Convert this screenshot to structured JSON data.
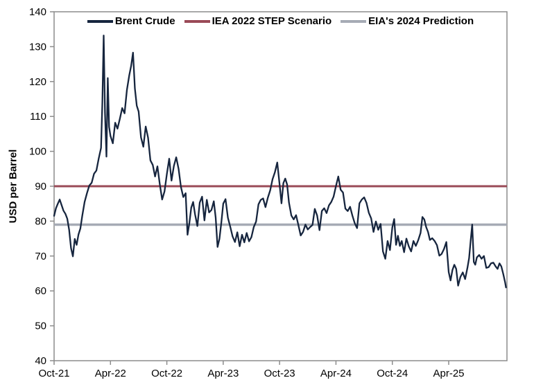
{
  "chart_data": {
    "type": "line",
    "title": "",
    "xlabel": "",
    "ylabel": "USD per Barrel",
    "ylim": [
      40,
      140
    ],
    "y_ticks": [
      140,
      130,
      120,
      110,
      100,
      90,
      80,
      70,
      60,
      50,
      40
    ],
    "x_ticks": [
      {
        "t": 0,
        "label": "Oct-21"
      },
      {
        "t": 6,
        "label": "Apr-22"
      },
      {
        "t": 12,
        "label": "Oct-22"
      },
      {
        "t": 18,
        "label": "Apr-23"
      },
      {
        "t": 24,
        "label": "Oct-23"
      },
      {
        "t": 30,
        "label": "Apr-24"
      },
      {
        "t": 36,
        "label": "Oct-24"
      },
      {
        "t": 42,
        "label": "Apr-25"
      }
    ],
    "x_range_months": 48.2,
    "grid": false,
    "legend_position": "top-center",
    "frame_color": "#8C8C8C",
    "series": [
      {
        "name": "Brent Crude",
        "type": "line",
        "color": "#16253E",
        "width": 2.3,
        "points": [
          [
            0,
            81.5
          ],
          [
            0.2,
            83.7
          ],
          [
            0.4,
            85.0
          ],
          [
            0.6,
            86.2
          ],
          [
            0.8,
            84.6
          ],
          [
            1,
            83.0
          ],
          [
            1.2,
            82.1
          ],
          [
            1.4,
            80.7
          ],
          [
            1.6,
            77.5
          ],
          [
            1.8,
            72.3
          ],
          [
            2,
            69.9
          ],
          [
            2.2,
            74.9
          ],
          [
            2.4,
            73.2
          ],
          [
            2.6,
            76.2
          ],
          [
            2.8,
            77.9
          ],
          [
            3,
            81.5
          ],
          [
            3.25,
            85.5
          ],
          [
            3.5,
            88.0
          ],
          [
            3.75,
            90.2
          ],
          [
            4,
            91.0
          ],
          [
            4.25,
            93.6
          ],
          [
            4.5,
            94.5
          ],
          [
            4.75,
            98.0
          ],
          [
            5,
            101.0
          ],
          [
            5.14,
            114.0
          ],
          [
            5.28,
            133.2
          ],
          [
            5.42,
            111.0
          ],
          [
            5.57,
            98.5
          ],
          [
            5.71,
            121.0
          ],
          [
            5.85,
            107.0
          ],
          [
            6,
            104.4
          ],
          [
            6.25,
            102.3
          ],
          [
            6.5,
            108.2
          ],
          [
            6.75,
            106.5
          ],
          [
            7,
            109.3
          ],
          [
            7.25,
            112.4
          ],
          [
            7.5,
            110.9
          ],
          [
            7.75,
            117.6
          ],
          [
            8,
            121.8
          ],
          [
            8.2,
            124.5
          ],
          [
            8.4,
            128.3
          ],
          [
            8.6,
            118.0
          ],
          [
            8.8,
            113.1
          ],
          [
            9,
            111.4
          ],
          [
            9.25,
            104.0
          ],
          [
            9.5,
            101.3
          ],
          [
            9.75,
            107.1
          ],
          [
            10,
            103.9
          ],
          [
            10.25,
            97.4
          ],
          [
            10.5,
            96.1
          ],
          [
            10.75,
            92.8
          ],
          [
            11,
            95.7
          ],
          [
            11.25,
            90.6
          ],
          [
            11.5,
            86.2
          ],
          [
            11.75,
            88.5
          ],
          [
            12,
            93.5
          ],
          [
            12.25,
            97.9
          ],
          [
            12.5,
            91.6
          ],
          [
            12.75,
            95.8
          ],
          [
            13,
            98.3
          ],
          [
            13.25,
            95.0
          ],
          [
            13.5,
            89.8
          ],
          [
            13.75,
            86.9
          ],
          [
            14,
            88.0
          ],
          [
            14.2,
            76.1
          ],
          [
            14.4,
            79.5
          ],
          [
            14.6,
            83.9
          ],
          [
            14.8,
            85.5
          ],
          [
            15,
            82.0
          ],
          [
            15.25,
            78.6
          ],
          [
            15.5,
            85.3
          ],
          [
            15.75,
            87.0
          ],
          [
            16,
            80.2
          ],
          [
            16.25,
            86.1
          ],
          [
            16.5,
            82.5
          ],
          [
            16.75,
            83.2
          ],
          [
            17,
            85.7
          ],
          [
            17.2,
            81.0
          ],
          [
            17.4,
            72.6
          ],
          [
            17.6,
            74.9
          ],
          [
            17.8,
            79.5
          ],
          [
            18,
            85.0
          ],
          [
            18.25,
            86.3
          ],
          [
            18.5,
            81.0
          ],
          [
            18.75,
            78.4
          ],
          [
            19,
            75.6
          ],
          [
            19.25,
            74.0
          ],
          [
            19.5,
            76.8
          ],
          [
            19.75,
            72.8
          ],
          [
            20,
            76.1
          ],
          [
            20.25,
            73.9
          ],
          [
            20.5,
            76.6
          ],
          [
            20.75,
            74.2
          ],
          [
            21,
            75.4
          ],
          [
            21.25,
            78.3
          ],
          [
            21.5,
            79.9
          ],
          [
            21.75,
            84.8
          ],
          [
            22,
            86.1
          ],
          [
            22.25,
            86.5
          ],
          [
            22.5,
            84.0
          ],
          [
            22.75,
            86.7
          ],
          [
            23,
            88.8
          ],
          [
            23.25,
            92.0
          ],
          [
            23.5,
            94.0
          ],
          [
            23.75,
            96.8
          ],
          [
            24,
            90.6
          ],
          [
            24.2,
            85.1
          ],
          [
            24.4,
            90.9
          ],
          [
            24.6,
            92.2
          ],
          [
            24.8,
            90.5
          ],
          [
            25,
            85.3
          ],
          [
            25.25,
            81.6
          ],
          [
            25.5,
            80.5
          ],
          [
            25.75,
            81.7
          ],
          [
            26,
            78.9
          ],
          [
            26.25,
            75.9
          ],
          [
            26.5,
            76.9
          ],
          [
            26.75,
            79.0
          ],
          [
            27,
            77.6
          ],
          [
            27.25,
            78.3
          ],
          [
            27.5,
            78.9
          ],
          [
            27.75,
            83.5
          ],
          [
            28,
            81.6
          ],
          [
            28.25,
            77.4
          ],
          [
            28.5,
            82.9
          ],
          [
            28.75,
            83.7
          ],
          [
            29,
            82.3
          ],
          [
            29.25,
            84.5
          ],
          [
            29.5,
            85.5
          ],
          [
            29.75,
            87.0
          ],
          [
            30,
            90.0
          ],
          [
            30.25,
            92.8
          ],
          [
            30.5,
            89.0
          ],
          [
            30.75,
            88.2
          ],
          [
            31,
            83.6
          ],
          [
            31.25,
            82.9
          ],
          [
            31.5,
            84.1
          ],
          [
            31.75,
            81.6
          ],
          [
            32,
            79.4
          ],
          [
            32.25,
            78.0
          ],
          [
            32.5,
            85.1
          ],
          [
            32.75,
            86.2
          ],
          [
            33,
            86.8
          ],
          [
            33.25,
            85.2
          ],
          [
            33.5,
            82.4
          ],
          [
            33.75,
            80.8
          ],
          [
            34,
            76.9
          ],
          [
            34.25,
            79.9
          ],
          [
            34.5,
            77.5
          ],
          [
            34.75,
            79.2
          ],
          [
            35,
            71.3
          ],
          [
            35.25,
            69.2
          ],
          [
            35.5,
            74.3
          ],
          [
            35.75,
            71.7
          ],
          [
            36,
            78.2
          ],
          [
            36.2,
            80.6
          ],
          [
            36.4,
            73.2
          ],
          [
            36.6,
            75.8
          ],
          [
            36.8,
            72.9
          ],
          [
            37,
            74.3
          ],
          [
            37.25,
            71.1
          ],
          [
            37.5,
            75.0
          ],
          [
            37.75,
            72.8
          ],
          [
            38,
            71.3
          ],
          [
            38.25,
            74.3
          ],
          [
            38.5,
            72.9
          ],
          [
            38.75,
            74.5
          ],
          [
            39,
            76.6
          ],
          [
            39.2,
            81.2
          ],
          [
            39.4,
            80.5
          ],
          [
            39.6,
            78.3
          ],
          [
            39.8,
            76.9
          ],
          [
            40,
            74.6
          ],
          [
            40.25,
            75.1
          ],
          [
            40.5,
            74.3
          ],
          [
            40.75,
            73.1
          ],
          [
            41,
            70.1
          ],
          [
            41.25,
            70.6
          ],
          [
            41.5,
            72.0
          ],
          [
            41.75,
            74.0
          ],
          [
            42,
            65.4
          ],
          [
            42.2,
            63.0
          ],
          [
            42.4,
            66.0
          ],
          [
            42.6,
            67.5
          ],
          [
            42.8,
            66.3
          ],
          [
            43,
            61.5
          ],
          [
            43.25,
            64.0
          ],
          [
            43.5,
            65.3
          ],
          [
            43.75,
            63.4
          ],
          [
            44,
            66.7
          ],
          [
            44.17,
            69.4
          ],
          [
            44.33,
            74.2
          ],
          [
            44.5,
            79.0
          ],
          [
            44.67,
            68.3
          ],
          [
            44.83,
            67.5
          ],
          [
            45,
            69.6
          ],
          [
            45.25,
            70.3
          ],
          [
            45.5,
            69.2
          ],
          [
            45.75,
            70.0
          ],
          [
            46,
            66.6
          ],
          [
            46.25,
            66.8
          ],
          [
            46.5,
            67.9
          ],
          [
            46.75,
            68.1
          ],
          [
            47,
            67.0
          ],
          [
            47.2,
            66.3
          ],
          [
            47.4,
            67.9
          ],
          [
            47.6,
            67.0
          ],
          [
            47.8,
            64.9
          ],
          [
            48,
            62.5
          ],
          [
            48.1,
            61.0
          ]
        ]
      },
      {
        "name": "IEA 2022 STEP Scenario",
        "type": "hline",
        "value": 90,
        "color": "#9A4A57",
        "width": 3
      },
      {
        "name": "EIA's 2024 Prediction",
        "type": "hline",
        "value": 79,
        "color": "#A6ABB5",
        "width": 3.5
      }
    ]
  }
}
